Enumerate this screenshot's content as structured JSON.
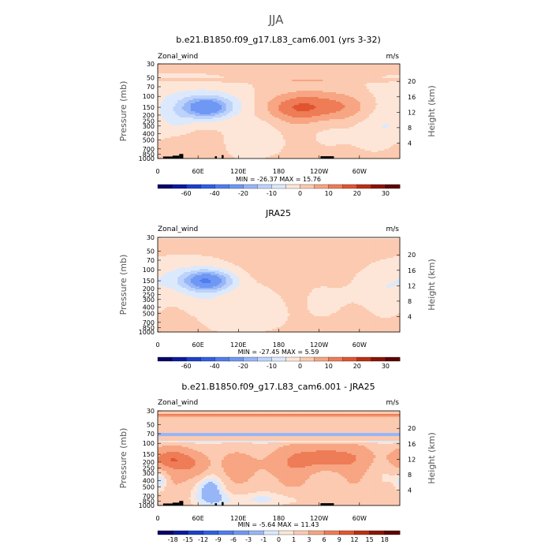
{
  "suptitle": "JJA",
  "chart_data": [
    {
      "type": "heatmap",
      "title": "b.e21.B1850.f09_g17.L83_cam6.001 (yrs 3-32)",
      "variable": "Zonal_wind",
      "units": "m/s",
      "ylabel": "Pressure (mb)",
      "y2label": "Height (km)",
      "x_ticks": [
        "0",
        "60E",
        "120E",
        "180",
        "120W",
        "60W"
      ],
      "y_ticks": [
        "30",
        "50",
        "70",
        "100",
        "150",
        "200",
        "250",
        "300",
        "400",
        "500",
        "700",
        "850",
        "1000"
      ],
      "y2_ticks": [
        "20",
        "16",
        "12",
        "8",
        "4"
      ],
      "stats": "MIN = -26.37 MAX = 15.76",
      "min": -26.37,
      "max": 15.76,
      "colorbar_labels": [
        "-60",
        "-40",
        "-20",
        "-10",
        "0",
        "10",
        "20",
        "30"
      ],
      "levels": [
        -70,
        -60,
        -50,
        -40,
        -30,
        -20,
        -15,
        -10,
        -5,
        0,
        5,
        10,
        15,
        20,
        25,
        30
      ],
      "colors": [
        "#08036b",
        "#0b1a9e",
        "#1d3fcc",
        "#2e5fe6",
        "#4f7df0",
        "#6f98f4",
        "#97b6f8",
        "#bdd3fb",
        "#dce9fd",
        "#fde6d7",
        "#fbcab0",
        "#f7a582",
        "#ee7c56",
        "#e0552f",
        "#bb2f13",
        "#8a1407",
        "#5c0300"
      ],
      "features": [
        {
          "kind": "shift",
          "v": 1.5
        },
        {
          "kind": "band",
          "pc": 55,
          "ph": 0.06,
          "v": 3.5
        },
        {
          "kind": "blob",
          "lon": 35,
          "p": 115,
          "sx": 80,
          "sp": 0.6,
          "v": -6
        },
        {
          "kind": "blob",
          "lon": 75,
          "p": 150,
          "sx": 30,
          "sp": 0.3,
          "v": -20
        },
        {
          "kind": "blob",
          "lon": 70,
          "p": 150,
          "sx": 14,
          "sp": 0.18,
          "v": -6
        },
        {
          "kind": "blob",
          "lon": 105,
          "p": 500,
          "sx": 60,
          "sp": 0.5,
          "v": -5
        },
        {
          "kind": "blob",
          "lon": 70,
          "p": 500,
          "sx": 25,
          "sp": 0.45,
          "v": 6
        },
        {
          "kind": "blob",
          "lon": 30,
          "p": 700,
          "sx": 30,
          "sp": 0.35,
          "v": 4
        },
        {
          "kind": "blob",
          "lon": 250,
          "p": 150,
          "sx": 55,
          "sp": 0.4,
          "v": 13
        },
        {
          "kind": "blob",
          "lon": 200,
          "p": 150,
          "sx": 30,
          "sp": 0.3,
          "v": 5
        },
        {
          "kind": "blob",
          "lon": 320,
          "p": 300,
          "sx": 45,
          "sp": 0.6,
          "v": -5
        },
        {
          "kind": "blob",
          "lon": 30,
          "p": 250,
          "sx": 15,
          "sp": 0.4,
          "v": -4
        }
      ],
      "terrain": [
        [
          8,
          22,
          0.35
        ],
        [
          22,
          32,
          0.5
        ],
        [
          32,
          38,
          0.8
        ],
        [
          85,
          88,
          0.4
        ],
        [
          95,
          98,
          0.6
        ],
        [
          242,
          262,
          0.4
        ]
      ]
    },
    {
      "type": "heatmap",
      "title": "JRA25",
      "variable": "Zonal_wind",
      "units": "m/s",
      "ylabel": "Pressure (mb)",
      "y2label": "Height (km)",
      "x_ticks": [
        "0",
        "60E",
        "120E",
        "180",
        "120W",
        "60W"
      ],
      "y_ticks": [
        "30",
        "50",
        "70",
        "100",
        "150",
        "200",
        "250",
        "300",
        "400",
        "500",
        "700",
        "850",
        "1000"
      ],
      "y2_ticks": [
        "20",
        "16",
        "12",
        "8",
        "4"
      ],
      "stats": "MIN = -27.45 MAX = 5.59",
      "min": -27.45,
      "max": 5.59,
      "colorbar_labels": [
        "-60",
        "-40",
        "-20",
        "-10",
        "0",
        "10",
        "20",
        "30"
      ],
      "levels": [
        -70,
        -60,
        -50,
        -40,
        -30,
        -20,
        -15,
        -10,
        -5,
        0,
        5,
        10,
        15,
        20,
        25,
        30
      ],
      "colors": [
        "#08036b",
        "#0b1a9e",
        "#1d3fcc",
        "#2e5fe6",
        "#4f7df0",
        "#6f98f4",
        "#97b6f8",
        "#bdd3fb",
        "#dce9fd",
        "#fde6d7",
        "#fbcab0",
        "#f7a582",
        "#ee7c56",
        "#e0552f",
        "#bb2f13",
        "#8a1407",
        "#5c0300"
      ],
      "features": [
        {
          "kind": "shift",
          "v": 2
        },
        {
          "kind": "band",
          "pc": 30,
          "ph": 0.05,
          "v": -4
        },
        {
          "kind": "blob",
          "lon": 45,
          "p": 130,
          "sx": 70,
          "sp": 0.55,
          "v": -6
        },
        {
          "kind": "blob",
          "lon": 75,
          "p": 150,
          "sx": 28,
          "sp": 0.28,
          "v": -22
        },
        {
          "kind": "blob",
          "lon": 70,
          "p": 150,
          "sx": 12,
          "sp": 0.16,
          "v": -6
        },
        {
          "kind": "blob",
          "lon": 110,
          "p": 500,
          "sx": 70,
          "sp": 0.55,
          "v": -5
        },
        {
          "kind": "blob",
          "lon": 210,
          "p": 110,
          "sx": 80,
          "sp": 0.4,
          "v": 3.5
        },
        {
          "kind": "blob",
          "lon": 300,
          "p": 200,
          "sx": 60,
          "sp": 0.6,
          "v": -4
        },
        {
          "kind": "blob",
          "lon": 40,
          "p": 700,
          "sx": 25,
          "sp": 0.35,
          "v": 3
        },
        {
          "kind": "blob",
          "lon": 265,
          "p": 150,
          "sx": 15,
          "sp": 0.2,
          "v": 3
        }
      ],
      "terrain": []
    },
    {
      "type": "heatmap",
      "title": "b.e21.B1850.f09_g17.L83_cam6.001 - JRA25",
      "variable": "Zonal_wind",
      "units": "m/s",
      "ylabel": "Pressure (mb)",
      "y2label": "Height (km)",
      "x_ticks": [
        "0",
        "60E",
        "120E",
        "180",
        "120W",
        "60W"
      ],
      "y_ticks": [
        "30",
        "50",
        "70",
        "100",
        "150",
        "200",
        "250",
        "300",
        "400",
        "500",
        "700",
        "850",
        "1000"
      ],
      "y2_ticks": [
        "20",
        "16",
        "12",
        "8",
        "4"
      ],
      "stats": "MIN = -5.64 MAX = 11.43",
      "min": -5.64,
      "max": 11.43,
      "colorbar_labels": [
        "-18",
        "-15",
        "-12",
        "-9",
        "-6",
        "-3",
        "-1",
        "0",
        "1",
        "3",
        "6",
        "9",
        "12",
        "15",
        "18"
      ],
      "levels": [
        -18,
        -15,
        -12,
        -9,
        -6,
        -3,
        -1,
        0,
        1,
        3,
        6,
        9,
        12,
        15,
        18
      ],
      "colors": [
        "#08036b",
        "#0b1a9e",
        "#1d3fcc",
        "#2e5fe6",
        "#4f7df0",
        "#6f98f4",
        "#97b6f8",
        "#dce9fd",
        "#fde6d7",
        "#fbcab0",
        "#f7a582",
        "#ee7c56",
        "#e0552f",
        "#bb2f13",
        "#8a1407",
        "#5c0300"
      ],
      "features": [
        {
          "kind": "shift",
          "v": 2
        },
        {
          "kind": "band",
          "pc": 35,
          "ph": 0.05,
          "v": 4.5
        },
        {
          "kind": "band",
          "pc": 72,
          "ph": 0.05,
          "v": -5
        },
        {
          "kind": "band",
          "pc": 95,
          "ph": 0.05,
          "v": -2.5
        },
        {
          "kind": "blob",
          "lon": 20,
          "p": 180,
          "sx": 22,
          "sp": 0.25,
          "v": 6
        },
        {
          "kind": "blob",
          "lon": 60,
          "p": 250,
          "sx": 18,
          "sp": 0.35,
          "v": 4
        },
        {
          "kind": "blob",
          "lon": 250,
          "p": 170,
          "sx": 40,
          "sp": 0.3,
          "v": 6
        },
        {
          "kind": "blob",
          "lon": 160,
          "p": 250,
          "sx": 60,
          "sp": 0.4,
          "v": 2
        },
        {
          "kind": "blob",
          "lon": 80,
          "p": 500,
          "sx": 18,
          "sp": 0.6,
          "v": -3.5
        },
        {
          "kind": "blob",
          "lon": 150,
          "p": 800,
          "sx": 60,
          "sp": 0.2,
          "v": -2
        },
        {
          "kind": "blob",
          "lon": 5,
          "p": 400,
          "sx": 8,
          "sp": 0.3,
          "v": -3
        }
      ],
      "terrain": [
        [
          8,
          22,
          0.35
        ],
        [
          22,
          32,
          0.5
        ],
        [
          32,
          38,
          0.8
        ],
        [
          85,
          88,
          0.4
        ],
        [
          95,
          98,
          0.6
        ],
        [
          242,
          262,
          0.4
        ]
      ]
    }
  ]
}
